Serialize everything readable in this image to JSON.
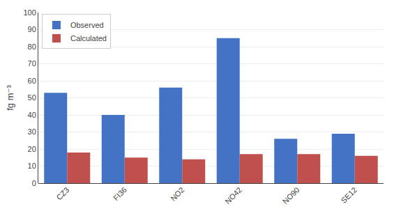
{
  "chart_data": {
    "type": "bar",
    "categories": [
      "CZ3",
      "FI36",
      "NO2",
      "NO42",
      "NO90",
      "SE12"
    ],
    "series": [
      {
        "name": "Observed",
        "color": "#4472C4",
        "values": [
          53,
          40,
          56,
          85,
          26,
          29
        ]
      },
      {
        "name": "Calculated",
        "color": "#C0504D",
        "values": [
          18,
          15,
          14,
          17,
          17,
          16
        ]
      }
    ],
    "ylabel": "fg m⁻³",
    "ylim": [
      0,
      100
    ],
    "yticks": [
      0,
      10,
      20,
      30,
      40,
      50,
      60,
      70,
      80,
      90,
      100
    ],
    "grid": true,
    "legend": "upper left"
  }
}
